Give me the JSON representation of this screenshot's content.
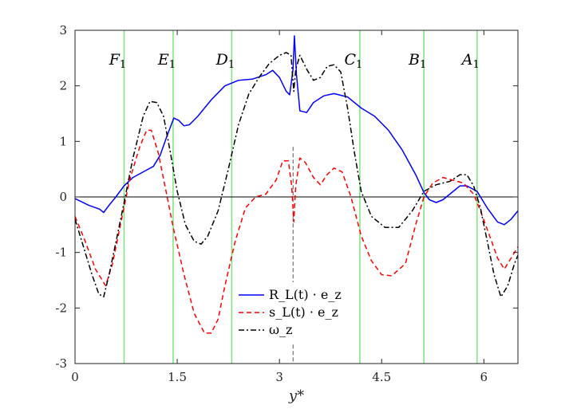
{
  "chart_data": {
    "type": "line",
    "xlabel": "y*",
    "ylabel": "",
    "xlim": [
      0,
      6.5
    ],
    "ylim": [
      -3,
      3
    ],
    "xticks": [
      {
        "value": 0,
        "label": "0"
      },
      {
        "value": 1.5,
        "label": "1.5"
      },
      {
        "value": 3,
        "label": "3"
      },
      {
        "value": 4.5,
        "label": "4.5"
      },
      {
        "value": 6,
        "label": "6"
      }
    ],
    "yticks": [
      {
        "value": -3,
        "label": "-3"
      },
      {
        "value": -2,
        "label": "-2"
      },
      {
        "value": -1,
        "label": "-1"
      },
      {
        "value": 0,
        "label": "0"
      },
      {
        "value": 1,
        "label": "1"
      },
      {
        "value": 2,
        "label": "2"
      },
      {
        "value": 3,
        "label": "3"
      }
    ],
    "grid": false,
    "legend_placement": "bottom-center",
    "zero_line": {
      "y": 0,
      "color": "#000000"
    },
    "dashed_vertical_line": {
      "x": 3.2,
      "color": "#555555"
    },
    "region_lines": {
      "color": "#7ee37e",
      "lines": [
        {
          "x": 0.72,
          "label": "F",
          "sub": "1"
        },
        {
          "x": 1.44,
          "label": "E",
          "sub": "1"
        },
        {
          "x": 2.3,
          "label": "D",
          "sub": "1"
        },
        {
          "x": 4.18,
          "label": "C",
          "sub": "1"
        },
        {
          "x": 5.12,
          "label": "B",
          "sub": "1"
        },
        {
          "x": 5.9,
          "label": "A",
          "sub": "1"
        }
      ]
    },
    "series": [
      {
        "name": "R_L(t) · e_z",
        "color": "#0000ff",
        "dash": "solid",
        "points": [
          [
            0,
            -0.03
          ],
          [
            0.2,
            -0.15
          ],
          [
            0.36,
            -0.22
          ],
          [
            0.42,
            -0.28
          ],
          [
            0.5,
            -0.15
          ],
          [
            0.6,
            0.0
          ],
          [
            0.72,
            0.2
          ],
          [
            0.85,
            0.35
          ],
          [
            1.0,
            0.45
          ],
          [
            1.15,
            0.55
          ],
          [
            1.25,
            0.75
          ],
          [
            1.35,
            1.1
          ],
          [
            1.45,
            1.42
          ],
          [
            1.52,
            1.38
          ],
          [
            1.6,
            1.28
          ],
          [
            1.68,
            1.3
          ],
          [
            1.8,
            1.45
          ],
          [
            2.0,
            1.75
          ],
          [
            2.2,
            2.0
          ],
          [
            2.4,
            2.1
          ],
          [
            2.6,
            2.12
          ],
          [
            2.8,
            2.2
          ],
          [
            2.9,
            2.28
          ],
          [
            3.0,
            2.15
          ],
          [
            3.1,
            1.9
          ],
          [
            3.15,
            1.84
          ],
          [
            3.2,
            2.3
          ],
          [
            3.22,
            2.9
          ],
          [
            3.25,
            2.2
          ],
          [
            3.3,
            1.55
          ],
          [
            3.4,
            1.52
          ],
          [
            3.5,
            1.7
          ],
          [
            3.65,
            1.82
          ],
          [
            3.8,
            1.86
          ],
          [
            4.0,
            1.8
          ],
          [
            4.2,
            1.6
          ],
          [
            4.4,
            1.45
          ],
          [
            4.6,
            1.2
          ],
          [
            4.8,
            0.85
          ],
          [
            5.0,
            0.4
          ],
          [
            5.12,
            0.08
          ],
          [
            5.2,
            -0.05
          ],
          [
            5.3,
            -0.1
          ],
          [
            5.4,
            -0.05
          ],
          [
            5.55,
            0.1
          ],
          [
            5.65,
            0.2
          ],
          [
            5.75,
            0.2
          ],
          [
            5.9,
            0.1
          ],
          [
            6.05,
            -0.2
          ],
          [
            6.2,
            -0.45
          ],
          [
            6.3,
            -0.5
          ],
          [
            6.4,
            -0.4
          ],
          [
            6.5,
            -0.25
          ]
        ]
      },
      {
        "name": "s_L(t) · e_z",
        "color": "#ff0000",
        "dash": "dashed",
        "points": [
          [
            0,
            -0.35
          ],
          [
            0.15,
            -0.8
          ],
          [
            0.3,
            -1.3
          ],
          [
            0.45,
            -1.6
          ],
          [
            0.55,
            -1.2
          ],
          [
            0.7,
            -0.3
          ],
          [
            0.8,
            0.3
          ],
          [
            0.95,
            0.9
          ],
          [
            1.05,
            1.2
          ],
          [
            1.12,
            1.2
          ],
          [
            1.22,
            0.8
          ],
          [
            1.32,
            0.2
          ],
          [
            1.45,
            -0.6
          ],
          [
            1.6,
            -1.4
          ],
          [
            1.75,
            -2.1
          ],
          [
            1.9,
            -2.45
          ],
          [
            2.0,
            -2.45
          ],
          [
            2.1,
            -2.2
          ],
          [
            2.2,
            -1.6
          ],
          [
            2.35,
            -0.8
          ],
          [
            2.5,
            -0.2
          ],
          [
            2.65,
            0.0
          ],
          [
            2.8,
            0.05
          ],
          [
            2.95,
            0.3
          ],
          [
            3.05,
            0.65
          ],
          [
            3.13,
            0.65
          ],
          [
            3.18,
            0.2
          ],
          [
            3.21,
            -0.45
          ],
          [
            3.24,
            0.2
          ],
          [
            3.3,
            0.7
          ],
          [
            3.38,
            0.62
          ],
          [
            3.5,
            0.35
          ],
          [
            3.6,
            0.22
          ],
          [
            3.7,
            0.4
          ],
          [
            3.8,
            0.52
          ],
          [
            3.92,
            0.45
          ],
          [
            4.05,
            0.0
          ],
          [
            4.2,
            -0.7
          ],
          [
            4.35,
            -1.15
          ],
          [
            4.5,
            -1.4
          ],
          [
            4.65,
            -1.42
          ],
          [
            4.85,
            -1.2
          ],
          [
            5.0,
            -0.5
          ],
          [
            5.12,
            0.0
          ],
          [
            5.25,
            0.25
          ],
          [
            5.4,
            0.35
          ],
          [
            5.55,
            0.3
          ],
          [
            5.7,
            0.25
          ],
          [
            5.85,
            0.05
          ],
          [
            5.95,
            -0.25
          ],
          [
            6.1,
            -0.75
          ],
          [
            6.2,
            -1.1
          ],
          [
            6.3,
            -1.3
          ],
          [
            6.4,
            -1.1
          ],
          [
            6.5,
            -0.9
          ]
        ]
      },
      {
        "name": "ω_z",
        "color": "#000000",
        "dash": "dashdot",
        "points": [
          [
            0,
            -0.4
          ],
          [
            0.1,
            -0.8
          ],
          [
            0.25,
            -1.4
          ],
          [
            0.35,
            -1.75
          ],
          [
            0.42,
            -1.8
          ],
          [
            0.5,
            -1.4
          ],
          [
            0.62,
            -0.7
          ],
          [
            0.72,
            -0.1
          ],
          [
            0.85,
            0.7
          ],
          [
            1.0,
            1.45
          ],
          [
            1.1,
            1.72
          ],
          [
            1.2,
            1.7
          ],
          [
            1.3,
            1.45
          ],
          [
            1.4,
            0.8
          ],
          [
            1.5,
            0.1
          ],
          [
            1.62,
            -0.5
          ],
          [
            1.75,
            -0.8
          ],
          [
            1.85,
            -0.85
          ],
          [
            1.95,
            -0.7
          ],
          [
            2.1,
            -0.25
          ],
          [
            2.25,
            0.5
          ],
          [
            2.4,
            1.3
          ],
          [
            2.55,
            1.85
          ],
          [
            2.7,
            2.15
          ],
          [
            2.85,
            2.4
          ],
          [
            3.0,
            2.55
          ],
          [
            3.1,
            2.6
          ],
          [
            3.17,
            2.55
          ],
          [
            3.21,
            1.9
          ],
          [
            3.24,
            2.3
          ],
          [
            3.3,
            2.55
          ],
          [
            3.4,
            2.3
          ],
          [
            3.5,
            2.1
          ],
          [
            3.6,
            2.15
          ],
          [
            3.7,
            2.35
          ],
          [
            3.8,
            2.38
          ],
          [
            3.9,
            2.25
          ],
          [
            4.0,
            1.6
          ],
          [
            4.1,
            0.8
          ],
          [
            4.2,
            0.1
          ],
          [
            4.35,
            -0.35
          ],
          [
            4.55,
            -0.55
          ],
          [
            4.75,
            -0.55
          ],
          [
            4.95,
            -0.25
          ],
          [
            5.12,
            0.1
          ],
          [
            5.3,
            0.22
          ],
          [
            5.5,
            0.28
          ],
          [
            5.65,
            0.4
          ],
          [
            5.75,
            0.4
          ],
          [
            5.85,
            0.2
          ],
          [
            5.95,
            -0.2
          ],
          [
            6.05,
            -0.8
          ],
          [
            6.15,
            -1.4
          ],
          [
            6.25,
            -1.8
          ],
          [
            6.35,
            -1.6
          ],
          [
            6.45,
            -1.2
          ],
          [
            6.5,
            -1.05
          ]
        ]
      }
    ],
    "legend_entries": [
      {
        "label": "R_L(t) · e_z",
        "color": "#0000ff",
        "dash": "solid"
      },
      {
        "label": "s_L(t) · e_z",
        "color": "#ff0000",
        "dash": "dashed"
      },
      {
        "label": "ω_z",
        "color": "#000000",
        "dash": "dashdot"
      }
    ]
  }
}
